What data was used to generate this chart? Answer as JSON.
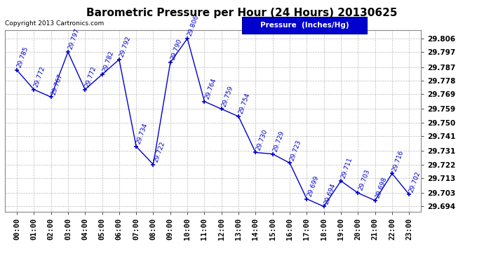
{
  "title": "Barometric Pressure per Hour (24 Hours) 20130625",
  "copyright": "Copyright 2013 Cartronics.com",
  "legend_label": "Pressure  (Inches/Hg)",
  "hours": [
    "00:00",
    "01:00",
    "02:00",
    "03:00",
    "04:00",
    "05:00",
    "06:00",
    "07:00",
    "08:00",
    "09:00",
    "10:00",
    "11:00",
    "12:00",
    "13:00",
    "14:00",
    "15:00",
    "16:00",
    "17:00",
    "18:00",
    "19:00",
    "20:00",
    "21:00",
    "22:00",
    "23:00"
  ],
  "values": [
    29.785,
    29.772,
    29.767,
    29.797,
    29.772,
    29.782,
    29.792,
    29.734,
    29.722,
    29.79,
    29.806,
    29.764,
    29.759,
    29.754,
    29.73,
    29.729,
    29.723,
    29.699,
    29.694,
    29.711,
    29.703,
    29.698,
    29.716,
    29.702
  ],
  "yticks": [
    29.694,
    29.703,
    29.713,
    29.722,
    29.731,
    29.741,
    29.75,
    29.759,
    29.769,
    29.778,
    29.787,
    29.797,
    29.806
  ],
  "ymin": 29.6905,
  "ymax": 29.8115,
  "line_color": "#0000cc",
  "marker_color": "#0000cc",
  "grid_color": "#bbbbbb",
  "bg_color": "#ffffff",
  "title_fontsize": 11,
  "annotation_fontsize": 6.5,
  "tick_fontsize": 7.5,
  "copyright_fontsize": 6.5,
  "legend_fontsize": 7.5
}
